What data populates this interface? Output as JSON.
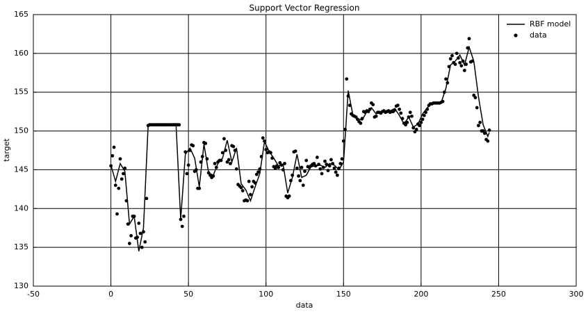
{
  "chart_data": {
    "type": "line",
    "title": "Support Vector Regression",
    "x_label": "data",
    "y_label": "target",
    "xlim": [
      -50,
      300
    ],
    "ylim": [
      130,
      165
    ],
    "xticks": [
      -50,
      0,
      50,
      100,
      150,
      200,
      250,
      300
    ],
    "yticks": [
      130,
      135,
      140,
      145,
      150,
      155,
      160,
      165
    ],
    "grid": true,
    "legend": "upper right",
    "series": [
      {
        "name": "RBF model",
        "type": "line",
        "color": "#000000",
        "x": [
          0,
          3,
          6,
          9,
          12,
          15,
          18,
          21,
          24,
          27,
          30,
          33,
          36,
          39,
          42,
          45,
          48,
          51,
          54,
          57,
          60,
          63,
          66,
          69,
          72,
          75,
          78,
          81,
          84,
          87,
          90,
          93,
          96,
          99,
          102,
          105,
          108,
          111,
          114,
          117,
          120,
          123,
          126,
          129,
          132,
          135,
          138,
          141,
          144,
          147,
          150,
          153,
          156,
          159,
          162,
          165,
          168,
          171,
          174,
          177,
          180,
          183,
          186,
          189,
          192,
          195,
          198,
          201,
          204,
          207,
          210,
          213,
          216,
          219,
          222,
          225,
          228,
          231,
          234,
          237,
          240,
          243,
          244
        ],
        "values": [
          145.6,
          143.5,
          145.8,
          144.8,
          138.0,
          139.0,
          134.5,
          137.5,
          150.7,
          150.8,
          150.8,
          150.8,
          150.8,
          150.8,
          150.8,
          138.6,
          147.0,
          147.8,
          146.5,
          142.8,
          148.3,
          144.6,
          144.3,
          145.8,
          146.5,
          148.8,
          146.0,
          147.8,
          143.2,
          142.4,
          141.0,
          142.8,
          144.5,
          148.6,
          147.4,
          146.5,
          145.5,
          145.7,
          142.0,
          144.0,
          147.0,
          144.0,
          144.3,
          145.4,
          145.5,
          145.6,
          145.3,
          145.8,
          145.6,
          145.0,
          146.0,
          155.2,
          152.1,
          151.6,
          151.4,
          152.5,
          153.0,
          152.2,
          152.4,
          152.5,
          152.6,
          152.9,
          152.0,
          150.9,
          151.8,
          150.5,
          150.9,
          152.2,
          153.0,
          153.5,
          153.6,
          153.7,
          155.5,
          158.5,
          159.0,
          159.8,
          158.5,
          160.8,
          159.0,
          154.4,
          150.8,
          149.3,
          149.8
        ]
      },
      {
        "name": "data",
        "type": "scatter",
        "color": "#000000",
        "x": [
          0,
          1,
          2,
          3,
          4,
          5,
          6,
          7,
          8,
          9,
          10,
          11,
          12,
          13,
          14,
          15,
          16,
          17,
          18,
          19,
          20,
          21,
          22,
          23,
          24,
          25,
          26,
          27,
          28,
          29,
          30,
          31,
          32,
          33,
          34,
          35,
          36,
          37,
          38,
          39,
          40,
          41,
          42,
          43,
          44,
          45,
          46,
          47,
          48,
          49,
          50,
          51,
          52,
          53,
          54,
          55,
          56,
          57,
          58,
          59,
          60,
          61,
          62,
          63,
          64,
          65,
          66,
          67,
          68,
          69,
          70,
          71,
          72,
          73,
          74,
          75,
          76,
          77,
          78,
          79,
          80,
          81,
          82,
          83,
          84,
          85,
          86,
          87,
          88,
          89,
          90,
          91,
          92,
          93,
          94,
          95,
          96,
          97,
          98,
          99,
          100,
          101,
          102,
          103,
          104,
          105,
          106,
          107,
          108,
          109,
          110,
          111,
          112,
          113,
          114,
          115,
          116,
          117,
          118,
          119,
          120,
          121,
          122,
          123,
          124,
          125,
          126,
          127,
          128,
          129,
          130,
          131,
          132,
          133,
          134,
          135,
          136,
          137,
          138,
          139,
          140,
          141,
          142,
          143,
          144,
          145,
          146,
          147,
          148,
          149,
          150,
          151,
          152,
          153,
          154,
          155,
          156,
          157,
          158,
          159,
          160,
          161,
          162,
          163,
          164,
          165,
          166,
          167,
          168,
          169,
          170,
          171,
          172,
          173,
          174,
          175,
          176,
          177,
          178,
          179,
          180,
          181,
          182,
          183,
          184,
          185,
          186,
          187,
          188,
          189,
          190,
          191,
          192,
          193,
          194,
          195,
          196,
          197,
          198,
          199,
          200,
          201,
          202,
          203,
          204,
          205,
          206,
          207,
          208,
          209,
          210,
          211,
          212,
          213,
          214,
          215,
          216,
          217,
          218,
          219,
          220,
          221,
          222,
          223,
          224,
          225,
          226,
          227,
          228,
          229,
          230,
          231,
          232,
          233,
          234,
          235,
          236,
          237,
          238,
          239,
          240,
          241,
          242,
          243,
          244
        ],
        "values": [
          145.5,
          146.8,
          147.9,
          143.0,
          139.3,
          142.6,
          146.4,
          143.8,
          144.5,
          145.2,
          141.0,
          138.0,
          135.5,
          136.5,
          139.0,
          139.0,
          136.2,
          136.3,
          138.1,
          136.8,
          135.0,
          137.0,
          135.7,
          141.3,
          150.7,
          150.8,
          150.8,
          150.8,
          150.8,
          150.8,
          150.8,
          150.8,
          150.8,
          150.8,
          150.8,
          150.8,
          150.8,
          150.8,
          150.8,
          150.8,
          150.8,
          150.8,
          150.8,
          150.8,
          150.8,
          138.6,
          137.7,
          139.0,
          147.3,
          144.5,
          145.6,
          147.5,
          148.2,
          148.1,
          144.8,
          145.0,
          142.6,
          142.6,
          146.0,
          146.7,
          148.5,
          148.4,
          146.4,
          144.6,
          144.3,
          144.0,
          144.2,
          145.8,
          145.3,
          146.0,
          146.2,
          146.2,
          147.2,
          149.0,
          147.5,
          146.0,
          146.3,
          145.8,
          148.1,
          148.0,
          147.5,
          145.1,
          143.1,
          142.9,
          142.7,
          142.3,
          141.0,
          141.1,
          141.0,
          143.5,
          141.8,
          142.8,
          143.5,
          143.3,
          144.4,
          144.7,
          145.1,
          146.7,
          149.1,
          148.7,
          147.6,
          147.2,
          147.3,
          147.2,
          146.5,
          145.4,
          145.2,
          145.5,
          145.3,
          145.9,
          145.6,
          145.0,
          145.8,
          141.6,
          141.4,
          141.6,
          143.6,
          144.3,
          147.3,
          147.4,
          145.2,
          144.2,
          143.6,
          145.3,
          143.0,
          144.8,
          146.2,
          145.4,
          145.3,
          145.5,
          145.7,
          145.8,
          145.5,
          146.6,
          145.7,
          145.1,
          144.5,
          145.3,
          146.1,
          145.7,
          144.9,
          145.5,
          146.3,
          145.8,
          145.2,
          144.7,
          144.3,
          145.2,
          145.8,
          146.4,
          148.7,
          150.2,
          156.7,
          154.5,
          153.3,
          152.2,
          152.0,
          151.9,
          151.8,
          151.5,
          151.2,
          151.0,
          151.6,
          152.5,
          152.4,
          152.6,
          152.5,
          152.8,
          153.6,
          153.4,
          151.8,
          151.9,
          152.4,
          152.4,
          152.3,
          152.5,
          152.6,
          152.4,
          152.5,
          152.6,
          152.4,
          152.5,
          152.5,
          152.7,
          153.2,
          153.3,
          152.8,
          152.3,
          151.6,
          151.0,
          150.8,
          151.1,
          151.8,
          152.4,
          151.9,
          150.4,
          149.9,
          150.2,
          150.9,
          150.7,
          151.1,
          151.5,
          152.0,
          152.4,
          152.8,
          153.3,
          153.5,
          153.5,
          153.6,
          153.6,
          153.6,
          153.6,
          153.6,
          153.7,
          153.8,
          155.0,
          156.7,
          156.2,
          158.3,
          159.3,
          159.7,
          158.8,
          158.6,
          160.0,
          159.4,
          158.8,
          158.4,
          159.0,
          157.8,
          158.6,
          160.7,
          161.9,
          158.9,
          159.0,
          154.6,
          154.3,
          153.0,
          150.7,
          151.1,
          150.0,
          150.0,
          149.7,
          148.9,
          148.7,
          150.1
        ]
      }
    ]
  }
}
